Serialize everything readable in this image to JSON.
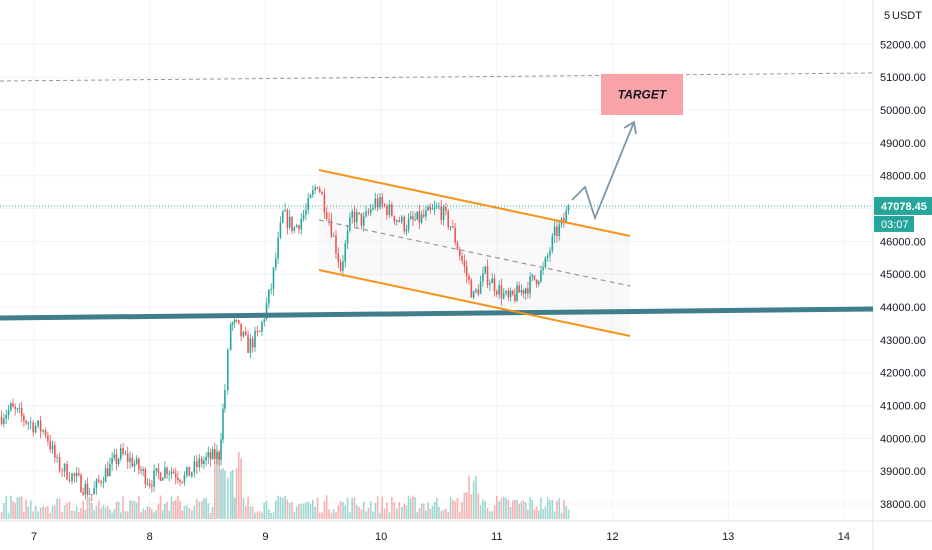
{
  "header": {
    "currency": "USDT",
    "scale_menu": "5"
  },
  "chart_data": {
    "type": "candlestick",
    "symbol_currency": "USDT",
    "x": {
      "ticks": [
        "7",
        "8",
        "9",
        "10",
        "11",
        "12",
        "13",
        "14"
      ]
    },
    "y": {
      "ylim": [
        37600,
        53400
      ],
      "ticks": [
        "38000.00",
        "39000.00",
        "40000.00",
        "41000.00",
        "42000.00",
        "43000.00",
        "44000.00",
        "45000.00",
        "46000.00",
        "47000.00",
        "48000.00",
        "49000.00",
        "50000.00",
        "51000.00",
        "52000.00"
      ]
    },
    "last_price": "47078.45",
    "countdown": "03:07",
    "colors": {
      "up": "#26a69a",
      "down": "#ef5350",
      "channel": "#f7931a",
      "support": "#3f7e8a",
      "target_box": "#f7a3a8",
      "projection": "#7b97a8"
    },
    "annotations": {
      "target_label": "TARGET",
      "resistance_price": 51100,
      "support_price": 43800,
      "target_zone": [
        49850,
        51100
      ]
    },
    "price_path": [
      [
        6.7,
        40650
      ],
      [
        6.8,
        40900
      ],
      [
        6.95,
        40500
      ],
      [
        7.1,
        40200
      ],
      [
        7.2,
        39200
      ],
      [
        7.35,
        38800
      ],
      [
        7.5,
        38300
      ],
      [
        7.6,
        38900
      ],
      [
        7.75,
        39500
      ],
      [
        7.85,
        39300
      ],
      [
        8.0,
        38700
      ],
      [
        8.15,
        39100
      ],
      [
        8.3,
        38800
      ],
      [
        8.45,
        39300
      ],
      [
        8.6,
        39500
      ],
      [
        8.65,
        41500
      ],
      [
        8.7,
        43500
      ],
      [
        8.75,
        43400
      ],
      [
        8.85,
        42800
      ],
      [
        8.95,
        43200
      ],
      [
        9.05,
        44600
      ],
      [
        9.15,
        46800
      ],
      [
        9.25,
        46400
      ],
      [
        9.35,
        46900
      ],
      [
        9.45,
        47800
      ],
      [
        9.55,
        46700
      ],
      [
        9.65,
        45200
      ],
      [
        9.75,
        46800
      ],
      [
        9.85,
        46600
      ],
      [
        9.95,
        47200
      ],
      [
        10.05,
        47000
      ],
      [
        10.2,
        46500
      ],
      [
        10.35,
        46700
      ],
      [
        10.5,
        47000
      ],
      [
        10.6,
        46500
      ],
      [
        10.7,
        45400
      ],
      [
        10.8,
        44300
      ],
      [
        10.9,
        45000
      ],
      [
        11.0,
        44600
      ],
      [
        11.1,
        44200
      ],
      [
        11.25,
        44600
      ],
      [
        11.4,
        45100
      ],
      [
        11.5,
        46200
      ],
      [
        11.58,
        46600
      ],
      [
        11.62,
        47078
      ]
    ],
    "volume_note": "volume bars along bottom"
  }
}
